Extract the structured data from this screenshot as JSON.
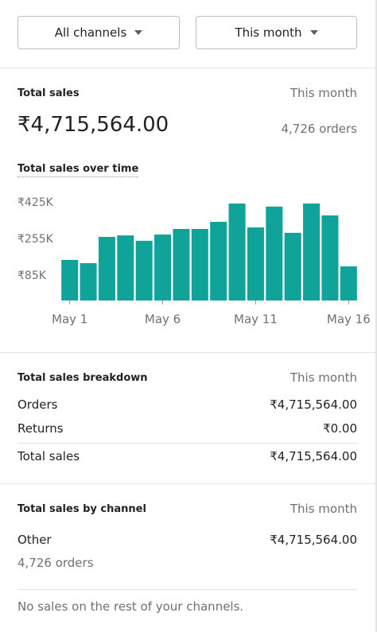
{
  "filters": {
    "channel": "All channels",
    "period": "This month"
  },
  "total_sales": {
    "title": "Total sales",
    "period": "This month",
    "amount": "₹4,715,564.00",
    "orders": "4,726 orders"
  },
  "chart_data": {
    "type": "bar",
    "title": "Total sales over time",
    "categories": [
      "May 1",
      null,
      null,
      null,
      null,
      "May 6",
      null,
      null,
      null,
      null,
      "May 11",
      null,
      null,
      null,
      null,
      "May 16"
    ],
    "values": [
      159000,
      144000,
      266000,
      273000,
      248000,
      277000,
      303000,
      303000,
      336000,
      421000,
      310000,
      407000,
      285000,
      421000,
      366000,
      129000
    ],
    "color": "#0fa39a",
    "ylim": [
      0,
      460000
    ],
    "yticks": [
      {
        "value": 85000,
        "label": "₹85K"
      },
      {
        "value": 255000,
        "label": "₹255K"
      },
      {
        "value": 425000,
        "label": "₹425K"
      }
    ],
    "grid": false
  },
  "breakdown": {
    "title": "Total sales breakdown",
    "period": "This month",
    "rows": [
      [
        "Orders",
        "₹4,715,564.00"
      ],
      [
        "Returns",
        "₹0.00"
      ],
      [
        "Total sales",
        "₹4,715,564.00"
      ]
    ]
  },
  "by_channel": {
    "title": "Total sales by channel",
    "period": "This month",
    "channel": "Other",
    "amount": "₹4,715,564.00",
    "orders": "4,726 orders",
    "note": "No sales on the rest of your channels."
  }
}
